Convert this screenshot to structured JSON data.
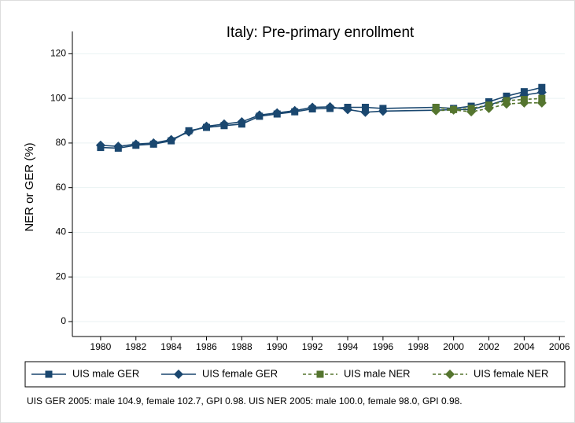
{
  "chart_data": {
    "type": "line",
    "title": "Italy: Pre-primary enrollment",
    "y_label": "NER or GER (%)",
    "footnote": "UIS GER 2005: male 104.9, female 102.7, GPI 0.98. UIS NER 2005: male 100.0, female 98.0, GPI 0.98.",
    "x": [
      1980,
      1981,
      1982,
      1983,
      1984,
      1985,
      1986,
      1987,
      1988,
      1989,
      1990,
      1991,
      1992,
      1993,
      1994,
      1995,
      1996,
      1999,
      2000,
      2001,
      2002,
      2003,
      2004,
      2005
    ],
    "series": [
      {
        "name": "UIS male GER",
        "color": "#1a476f",
        "marker": "square",
        "dash": false,
        "values": [
          78,
          77.7,
          79,
          79.5,
          81,
          85.5,
          87,
          87.8,
          88.5,
          92,
          93,
          94,
          95.3,
          95.5,
          96,
          96,
          95.5,
          96,
          95.5,
          96.5,
          98.5,
          101,
          103,
          104.9
        ]
      },
      {
        "name": "UIS female GER",
        "color": "#1a476f",
        "marker": "diamond",
        "dash": false,
        "values": [
          79,
          78.5,
          79.5,
          80,
          81.5,
          85,
          87.5,
          88.5,
          89.5,
          92.5,
          93.5,
          94.5,
          96,
          96.2,
          95,
          93.8,
          94.3,
          94.7,
          95,
          95,
          97,
          99.5,
          101.5,
          102.7
        ]
      },
      {
        "name": "UIS male NER",
        "color": "#55752f",
        "marker": "square",
        "dash": true,
        "values": [
          null,
          null,
          null,
          null,
          null,
          null,
          null,
          null,
          null,
          null,
          null,
          null,
          null,
          null,
          null,
          null,
          null,
          96,
          95,
          95.5,
          97,
          99,
          99.5,
          100.0
        ]
      },
      {
        "name": "UIS female NER",
        "color": "#55752f",
        "marker": "diamond",
        "dash": true,
        "values": [
          null,
          null,
          null,
          null,
          null,
          null,
          null,
          null,
          null,
          null,
          null,
          null,
          null,
          null,
          null,
          null,
          null,
          94.5,
          94.8,
          94,
          95.5,
          97.5,
          98,
          98.0
        ]
      }
    ],
    "xlim": [
      1978.4,
      2006.3
    ],
    "ylim": [
      -6.7,
      130
    ],
    "xticks": [
      1980,
      1982,
      1984,
      1986,
      1988,
      1990,
      1992,
      1994,
      1996,
      1998,
      2000,
      2002,
      2004,
      2006
    ],
    "yticks": [
      0,
      20,
      40,
      60,
      80,
      100,
      120
    ],
    "grid": true
  }
}
